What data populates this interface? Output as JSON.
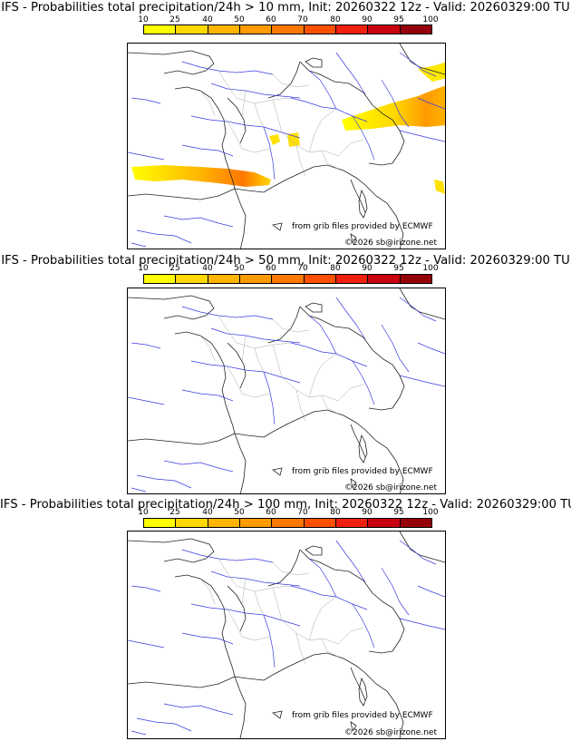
{
  "colorbar": {
    "ticks": [
      "10",
      "25",
      "40",
      "50",
      "60",
      "70",
      "80",
      "90",
      "95",
      "100"
    ],
    "colors": [
      "#ffff00",
      "#ffd800",
      "#ffb400",
      "#ff9a00",
      "#ff7800",
      "#ff5000",
      "#f02010",
      "#c80010",
      "#960008",
      "#5a0000"
    ]
  },
  "panels": [
    {
      "title": "IFS - Probabilities total precipitation/24h > 10 mm, Init: 20260322 12z - Valid: 20260329:00 TU",
      "credit_source": "from grib files provided by ECMWF",
      "credit_copyright": "©2026 sb@irizone.net"
    },
    {
      "title": "IFS - Probabilities total precipitation/24h > 50 mm, Init: 20260322 12z - Valid: 20260329:00 TU",
      "credit_source": "from grib files provided by ECMWF",
      "credit_copyright": "©2026 sb@irizone.net"
    },
    {
      "title": "IFS - Probabilities total precipitation/24h > 100 mm, Init: 20260322 12z - Valid: 20260329:00 TU",
      "credit_source": "from grib files provided by ECMWF",
      "credit_copyright": "©2026 sb@irizone.net"
    }
  ]
}
